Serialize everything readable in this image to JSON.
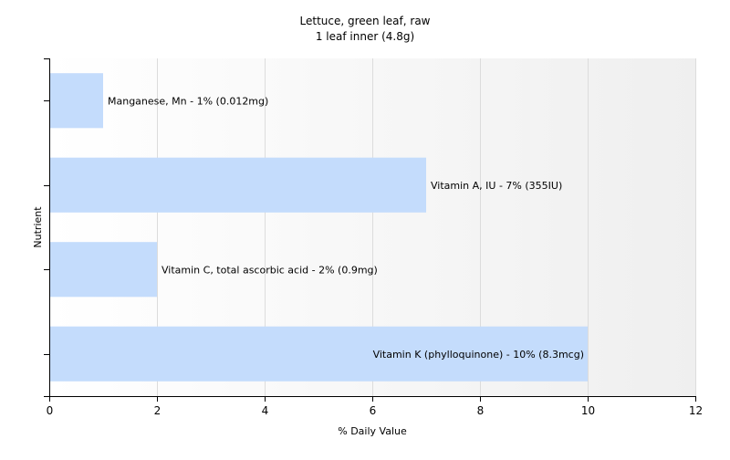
{
  "chart_data": {
    "type": "bar",
    "orientation": "horizontal",
    "title": "Lettuce, green leaf, raw",
    "subtitle": "1 leaf inner (4.8g)",
    "xlabel": "% Daily Value",
    "ylabel": "Nutrient",
    "xlim": [
      0,
      12
    ],
    "xticks": [
      "0",
      "2",
      "4",
      "6",
      "8",
      "10",
      "12"
    ],
    "grid": true,
    "bar_color": "#c4dcfc",
    "categories": [
      "Manganese, Mn",
      "Vitamin A, IU",
      "Vitamin C, total ascorbic acid",
      "Vitamin K (phylloquinone)"
    ],
    "values": [
      1,
      7,
      2,
      10
    ],
    "data_labels": [
      "Manganese, Mn - 1% (0.012mg)",
      "Vitamin A, IU - 7% (355IU)",
      "Vitamin C, total ascorbic acid - 2% (0.9mg)",
      "Vitamin K (phylloquinone) - 10% (8.3mcg)"
    ]
  }
}
